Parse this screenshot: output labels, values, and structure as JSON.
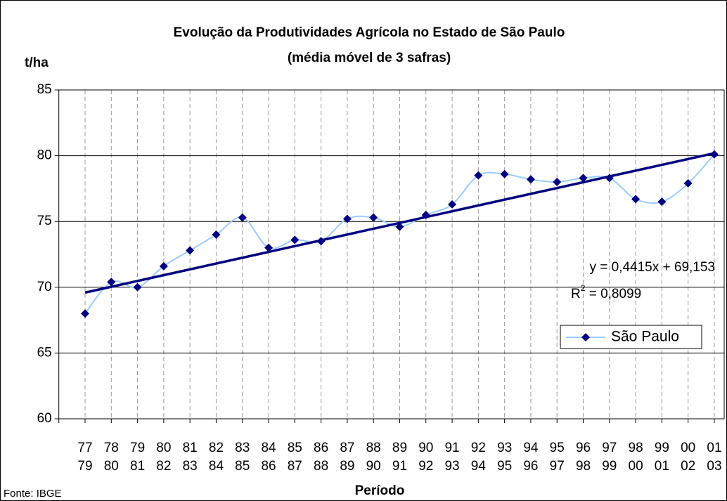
{
  "chart_data": {
    "type": "line",
    "title": [
      "Evolução da Produtividades Agrícola no Estado de São Paulo",
      "(média móvel de 3 safras)"
    ],
    "y_label": "t/ha",
    "x_label": "Período",
    "source": "Fonte: IBGE",
    "categories": [
      [
        "77",
        "79"
      ],
      [
        "78",
        "80"
      ],
      [
        "79",
        "81"
      ],
      [
        "80",
        "82"
      ],
      [
        "81",
        "83"
      ],
      [
        "82",
        "84"
      ],
      [
        "83",
        "85"
      ],
      [
        "84",
        "86"
      ],
      [
        "85",
        "87"
      ],
      [
        "86",
        "88"
      ],
      [
        "87",
        "89"
      ],
      [
        "88",
        "90"
      ],
      [
        "89",
        "91"
      ],
      [
        "90",
        "92"
      ],
      [
        "91",
        "93"
      ],
      [
        "92",
        "94"
      ],
      [
        "93",
        "95"
      ],
      [
        "94",
        "96"
      ],
      [
        "95",
        "97"
      ],
      [
        "96",
        "98"
      ],
      [
        "97",
        "99"
      ],
      [
        "98",
        "00"
      ],
      [
        "99",
        "01"
      ],
      [
        "00",
        "02"
      ],
      [
        "01",
        "03"
      ]
    ],
    "series": [
      {
        "name": "São Paulo",
        "color": "#99ccff",
        "marker_color": "#000080",
        "values": [
          68.0,
          70.4,
          70.0,
          71.6,
          72.8,
          74.0,
          75.3,
          73.0,
          73.6,
          73.5,
          75.2,
          75.3,
          74.6,
          75.5,
          76.3,
          78.5,
          78.6,
          78.2,
          78.0,
          78.3,
          78.3,
          76.7,
          76.5,
          77.9,
          80.1
        ]
      }
    ],
    "trendline": {
      "slope": 0.4415,
      "intercept": 69.153,
      "color": "#000080",
      "label": "y = 0,4415x + 69,153",
      "r2": 0.8099,
      "r2_label": [
        "R",
        "2",
        " = 0,8099"
      ]
    },
    "ylim": [
      60,
      85
    ],
    "yticks": [
      60,
      65,
      70,
      75,
      80,
      85
    ],
    "grid": true,
    "legend": "right"
  }
}
